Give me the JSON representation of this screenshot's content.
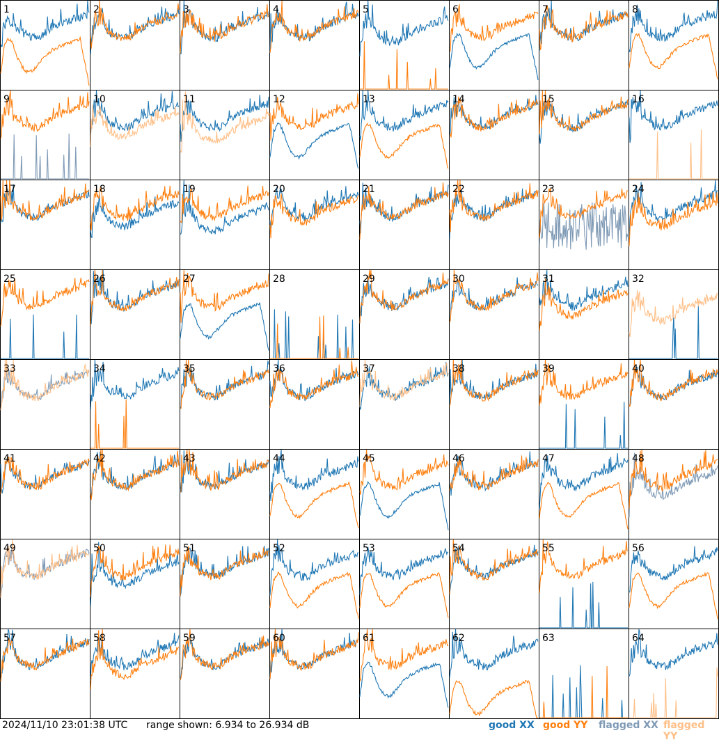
{
  "footer": {
    "timestamp": "2024/11/10 23:01:38 UTC",
    "range_text": "range shown: 6.934 to 26.934 dB"
  },
  "legend": {
    "good_xx": "good XX",
    "good_yy": "good YY",
    "flagged_xx": "flagged XX",
    "flagged_yy": "flagged YY"
  },
  "colors": {
    "good_xx": "#1f77b4",
    "good_yy": "#ff7f0e",
    "flagged_xx": "#7f9ab5",
    "flagged_yy": "#ffbf87"
  },
  "chart_data": {
    "type": "line",
    "grid": "8x8 small multiples",
    "ylim": [
      6.934,
      26.934
    ],
    "y_unit": "dB",
    "panels": [
      {
        "id": "1",
        "xx": "good",
        "yy": "good",
        "xx_shape": "normal",
        "yy_shape": "rolloff",
        "yy_off": -1
      },
      {
        "id": "2",
        "xx": "good",
        "yy": "good",
        "xx_shape": "normal",
        "yy_shape": "normal"
      },
      {
        "id": "3",
        "xx": "good",
        "yy": "good",
        "xx_shape": "normal",
        "yy_shape": "normal"
      },
      {
        "id": "4",
        "xx": "good",
        "yy": "good",
        "xx_shape": "normal",
        "yy_shape": "normal"
      },
      {
        "id": "5",
        "xx": "good",
        "yy": "good",
        "xx_shape": "normal",
        "yy_shape": "dead",
        "xx_off": -1
      },
      {
        "id": "6",
        "xx": "good",
        "yy": "good",
        "xx_shape": "rolloff",
        "yy_shape": "normal"
      },
      {
        "id": "7",
        "xx": "good",
        "yy": "good",
        "xx_shape": "normal",
        "yy_shape": "normal"
      },
      {
        "id": "8",
        "xx": "good",
        "yy": "good",
        "xx_shape": "normal",
        "yy_shape": "rolloff"
      },
      {
        "id": "9",
        "xx": "flagged",
        "yy": "good",
        "xx_shape": "dead",
        "yy_shape": "normal"
      },
      {
        "id": "10",
        "xx": "good",
        "yy": "flagged",
        "xx_shape": "normal",
        "yy_shape": "normal",
        "yy_off": -2
      },
      {
        "id": "11",
        "xx": "good",
        "yy": "flagged",
        "xx_shape": "normal",
        "yy_shape": "normal",
        "yy_off": -3
      },
      {
        "id": "12",
        "xx": "good",
        "yy": "good",
        "xx_shape": "rolloff",
        "yy_shape": "normal"
      },
      {
        "id": "13",
        "xx": "good",
        "yy": "good",
        "xx_shape": "normal",
        "yy_shape": "rolloff"
      },
      {
        "id": "14",
        "xx": "good",
        "yy": "good",
        "xx_shape": "normal",
        "yy_shape": "normal"
      },
      {
        "id": "15",
        "xx": "good",
        "yy": "good",
        "xx_shape": "normal",
        "yy_shape": "normal"
      },
      {
        "id": "16",
        "xx": "good",
        "yy": "flagged",
        "xx_shape": "normal",
        "yy_shape": "dead"
      },
      {
        "id": "17",
        "xx": "good",
        "yy": "good",
        "xx_shape": "normal",
        "yy_shape": "normal"
      },
      {
        "id": "18",
        "xx": "good",
        "yy": "good",
        "xx_shape": "normal",
        "yy_shape": "normal",
        "xx_off": -2
      },
      {
        "id": "19",
        "xx": "good",
        "yy": "good",
        "xx_shape": "normal",
        "yy_shape": "normal",
        "xx_off": -3
      },
      {
        "id": "20",
        "xx": "good",
        "yy": "good",
        "xx_shape": "normal",
        "yy_shape": "normal",
        "yy_off": -1
      },
      {
        "id": "21",
        "xx": "good",
        "yy": "good",
        "xx_shape": "normal",
        "yy_shape": "normal"
      },
      {
        "id": "22",
        "xx": "good",
        "yy": "good",
        "xx_shape": "normal",
        "yy_shape": "normal"
      },
      {
        "id": "23",
        "xx": "flagged",
        "yy": "good",
        "xx_shape": "noisy",
        "yy_shape": "normal"
      },
      {
        "id": "24",
        "xx": "good",
        "yy": "good",
        "xx_shape": "normal",
        "yy_shape": "normal",
        "yy_off": -2
      },
      {
        "id": "25",
        "xx": "good",
        "yy": "good",
        "xx_shape": "dead",
        "yy_shape": "normal"
      },
      {
        "id": "26",
        "xx": "good",
        "yy": "good",
        "xx_shape": "normal",
        "yy_shape": "normal"
      },
      {
        "id": "27",
        "xx": "good",
        "yy": "good",
        "xx_shape": "rolloff",
        "yy_shape": "normal"
      },
      {
        "id": "28",
        "xx": "good",
        "yy": "good",
        "xx_shape": "dead",
        "yy_shape": "dead"
      },
      {
        "id": "29",
        "xx": "good",
        "yy": "good",
        "xx_shape": "normal",
        "yy_shape": "normal"
      },
      {
        "id": "30",
        "xx": "good",
        "yy": "good",
        "xx_shape": "normal",
        "yy_shape": "normal"
      },
      {
        "id": "31",
        "xx": "good",
        "yy": "good",
        "xx_shape": "normal",
        "yy_shape": "normal",
        "yy_off": -2
      },
      {
        "id": "32",
        "xx": "good",
        "yy": "flagged",
        "xx_shape": "dead",
        "yy_shape": "normal",
        "yy_off": -3
      },
      {
        "id": "33",
        "xx": "flagged",
        "yy": "flagged",
        "xx_shape": "normal",
        "yy_shape": "normal"
      },
      {
        "id": "34",
        "xx": "good",
        "yy": "good",
        "xx_shape": "normal",
        "yy_shape": "dead"
      },
      {
        "id": "35",
        "xx": "good",
        "yy": "good",
        "xx_shape": "normal",
        "yy_shape": "normal"
      },
      {
        "id": "36",
        "xx": "good",
        "yy": "good",
        "xx_shape": "normal",
        "yy_shape": "normal"
      },
      {
        "id": "37",
        "xx": "good",
        "yy": "flagged",
        "xx_shape": "normal",
        "yy_shape": "normal"
      },
      {
        "id": "38",
        "xx": "good",
        "yy": "good",
        "xx_shape": "normal",
        "yy_shape": "normal"
      },
      {
        "id": "39",
        "xx": "good",
        "yy": "good",
        "xx_shape": "dead",
        "yy_shape": "normal"
      },
      {
        "id": "40",
        "xx": "good",
        "yy": "good",
        "xx_shape": "normal",
        "yy_shape": "normal"
      },
      {
        "id": "41",
        "xx": "good",
        "yy": "good",
        "xx_shape": "normal",
        "yy_shape": "normal"
      },
      {
        "id": "42",
        "xx": "good",
        "yy": "good",
        "xx_shape": "normal",
        "yy_shape": "normal"
      },
      {
        "id": "43",
        "xx": "good",
        "yy": "good",
        "xx_shape": "normal",
        "yy_shape": "normal"
      },
      {
        "id": "44",
        "xx": "good",
        "yy": "good",
        "xx_shape": "normal",
        "yy_shape": "rolloff"
      },
      {
        "id": "45",
        "xx": "good",
        "yy": "good",
        "xx_shape": "rolloff",
        "yy_shape": "normal"
      },
      {
        "id": "46",
        "xx": "good",
        "yy": "good",
        "xx_shape": "normal",
        "yy_shape": "normal"
      },
      {
        "id": "47",
        "xx": "good",
        "yy": "good",
        "xx_shape": "normal",
        "yy_shape": "rolloff"
      },
      {
        "id": "48",
        "xx": "flagged",
        "yy": "good",
        "xx_shape": "normal",
        "yy_shape": "normal",
        "xx_off": -2
      },
      {
        "id": "49",
        "xx": "flagged",
        "yy": "flagged",
        "xx_shape": "normal",
        "yy_shape": "normal"
      },
      {
        "id": "50",
        "xx": "good",
        "yy": "good",
        "xx_shape": "normal",
        "yy_shape": "normal",
        "xx_off": -2
      },
      {
        "id": "51",
        "xx": "good",
        "yy": "good",
        "xx_shape": "normal",
        "yy_shape": "normal"
      },
      {
        "id": "52",
        "xx": "good",
        "yy": "good",
        "xx_shape": "normal",
        "yy_shape": "rolloff"
      },
      {
        "id": "53",
        "xx": "good",
        "yy": "good",
        "xx_shape": "normal",
        "yy_shape": "rolloff"
      },
      {
        "id": "54",
        "xx": "good",
        "yy": "good",
        "xx_shape": "normal",
        "yy_shape": "normal"
      },
      {
        "id": "55",
        "xx": "good",
        "yy": "good",
        "xx_shape": "dead",
        "yy_shape": "normal"
      },
      {
        "id": "56",
        "xx": "good",
        "yy": "good",
        "xx_shape": "normal",
        "yy_shape": "rolloff"
      },
      {
        "id": "57",
        "xx": "good",
        "yy": "good",
        "xx_shape": "normal",
        "yy_shape": "normal"
      },
      {
        "id": "58",
        "xx": "good",
        "yy": "good",
        "xx_shape": "normal",
        "yy_shape": "normal",
        "yy_off": -2
      },
      {
        "id": "59",
        "xx": "good",
        "yy": "good",
        "xx_shape": "normal",
        "yy_shape": "normal"
      },
      {
        "id": "60",
        "xx": "good",
        "yy": "good",
        "xx_shape": "normal",
        "yy_shape": "normal"
      },
      {
        "id": "61",
        "xx": "good",
        "yy": "good",
        "xx_shape": "rolloff",
        "yy_shape": "normal"
      },
      {
        "id": "62",
        "xx": "good",
        "yy": "good",
        "xx_shape": "normal",
        "yy_shape": "rolloff",
        "yy_off": -4
      },
      {
        "id": "63",
        "xx": "good",
        "yy": "good",
        "xx_shape": "dead",
        "yy_shape": "dead"
      },
      {
        "id": "64",
        "xx": "good",
        "yy": "flagged",
        "xx_shape": "normal",
        "yy_shape": "dead"
      }
    ]
  }
}
